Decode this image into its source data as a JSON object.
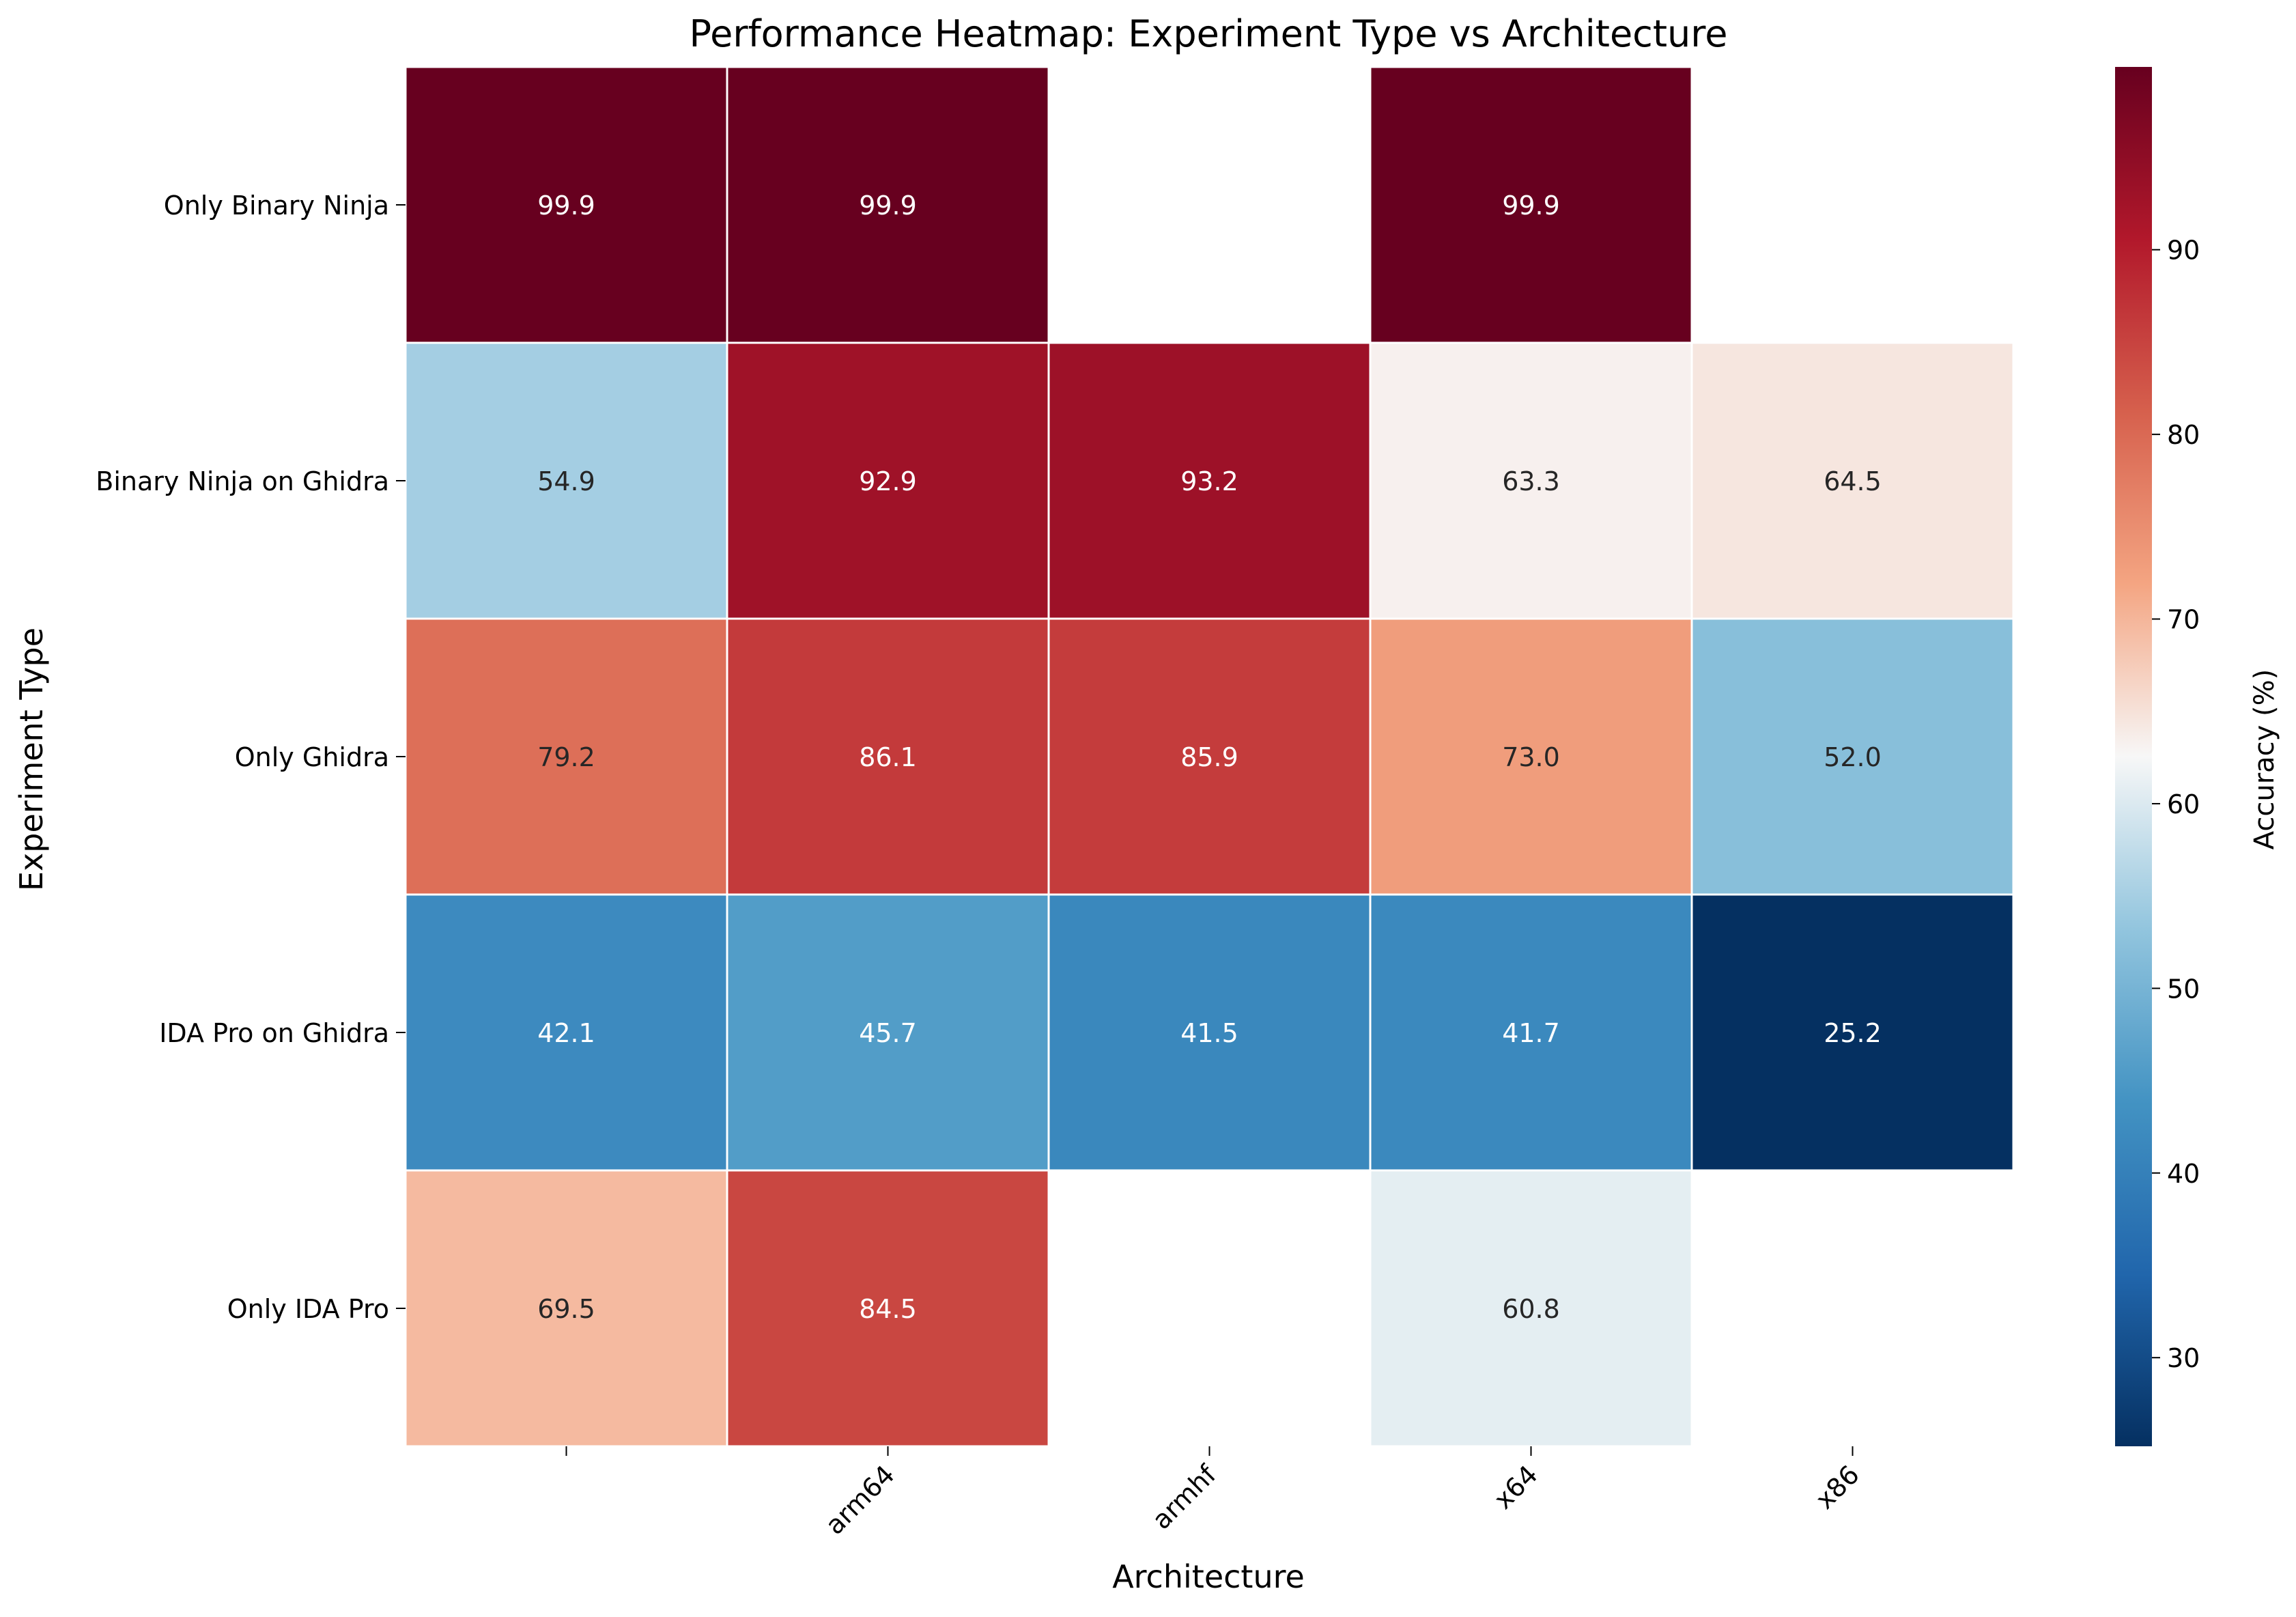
{
  "chart_data": {
    "type": "heatmap",
    "title": "Performance Heatmap: Experiment Type vs Architecture",
    "xlabel": "Architecture",
    "ylabel": "Experiment Type",
    "x_categories": [
      "",
      "arm64",
      "armhf",
      "x64",
      "x86"
    ],
    "y_categories": [
      "Only Binary Ninja",
      "Binary Ninja on Ghidra",
      "Only Ghidra",
      "IDA Pro on Ghidra",
      "Only IDA Pro"
    ],
    "values": [
      [
        99.9,
        99.9,
        null,
        99.9,
        null
      ],
      [
        54.9,
        92.9,
        93.2,
        63.3,
        64.5
      ],
      [
        79.2,
        86.1,
        85.9,
        73.0,
        52.0
      ],
      [
        42.1,
        45.7,
        41.5,
        41.7,
        25.2
      ],
      [
        69.5,
        84.5,
        null,
        60.8,
        null
      ]
    ],
    "colorbar": {
      "label": "Accuracy (%)",
      "colormap": "RdBu_r",
      "range": [
        25.2,
        99.9
      ],
      "ticks": [
        30,
        40,
        50,
        60,
        70,
        80,
        90
      ]
    }
  }
}
